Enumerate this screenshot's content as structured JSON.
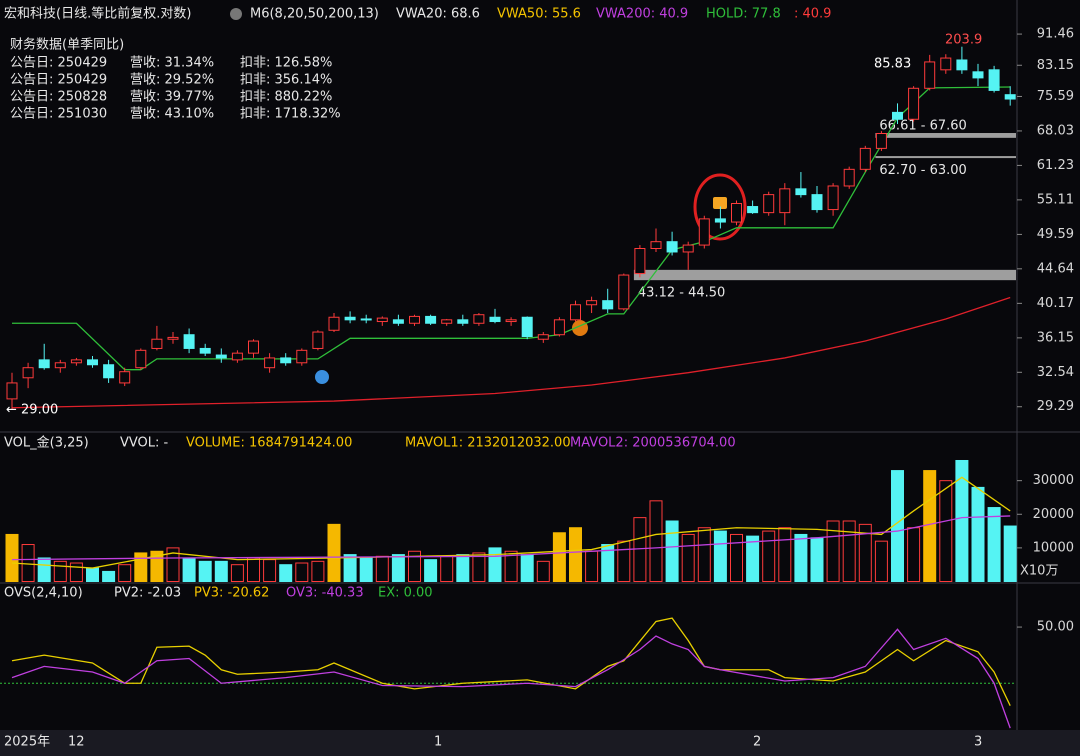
{
  "header": {
    "title": "宏和科技(日线.等比前复权.对数)",
    "indicator": "M6(8,20,50,200,13)",
    "vwa20": "VWA20: 68.6",
    "vwa50": "VWA50: 55.6",
    "vwa200": "VWA200: 40.9",
    "hold": "HOLD: 77.8",
    "extra": ": 40.9"
  },
  "finance": {
    "title": "财务数据(单季同比)",
    "rows": [
      [
        "公告日: 250429",
        "营收: 31.34%",
        "扣非: 126.58%"
      ],
      [
        "公告日: 250429",
        "营收: 29.52%",
        "扣非: 356.14%"
      ],
      [
        "公告日: 250828",
        "营收: 39.77%",
        "扣非: 880.22%"
      ],
      [
        "公告日: 251030",
        "营收: 43.10%",
        "扣非: 1718.32%"
      ]
    ]
  },
  "volume_header": {
    "name": "VOL_金(3,25)",
    "vvol": "VVOL: -",
    "volume": "VOLUME: 1684791424.00",
    "mavol1": "MAVOL1: 2132012032.00",
    "mavol2": "MAVOL2: 2000536704.00"
  },
  "ovs_header": {
    "name": "OVS(2,4,10)",
    "pv2": "PV2: -2.03",
    "pv3": "PV3: -20.62",
    "ov3": "OV3: -40.33",
    "ex": "EX: 0.00"
  },
  "footer": {
    "labels": [
      "2025年",
      "12",
      "1",
      "2",
      "3"
    ]
  },
  "chart_data": [
    {
      "type": "candlestick",
      "log_scale": true,
      "ylim": [
        27.7,
        94.9
      ],
      "yticks": [
        91.46,
        83.15,
        75.59,
        68.03,
        61.23,
        55.11,
        49.59,
        44.64,
        40.17,
        36.15,
        32.54,
        29.29
      ],
      "up_color": "#ff3b3b",
      "down_color": "#55f3f3",
      "candles": [
        [
          30.0,
          32.5,
          29.0,
          31.5
        ],
        [
          32.0,
          33.5,
          31.0,
          33.0
        ],
        [
          33.8,
          35.5,
          32.8,
          33.0
        ],
        [
          33.0,
          33.8,
          32.5,
          33.5
        ],
        [
          33.5,
          34.0,
          33.2,
          33.8
        ],
        [
          33.8,
          34.2,
          33.0,
          33.3
        ],
        [
          33.3,
          33.8,
          31.5,
          32.0
        ],
        [
          31.5,
          33.0,
          31.2,
          32.6
        ],
        [
          33.0,
          35.0,
          32.8,
          34.8
        ],
        [
          35.0,
          37.5,
          34.8,
          36.0
        ],
        [
          36.0,
          36.8,
          35.5,
          36.2
        ],
        [
          36.5,
          37.2,
          34.5,
          35.0
        ],
        [
          35.0,
          35.5,
          34.2,
          34.5
        ],
        [
          34.3,
          35.0,
          33.5,
          34.0
        ],
        [
          33.8,
          34.8,
          33.5,
          34.5
        ],
        [
          34.5,
          36.0,
          34.0,
          35.8
        ],
        [
          33.0,
          34.5,
          32.5,
          34.0
        ],
        [
          34.0,
          34.5,
          33.2,
          33.5
        ],
        [
          33.5,
          35.0,
          33.2,
          34.8
        ],
        [
          35.0,
          37.0,
          34.8,
          36.8
        ],
        [
          37.0,
          39.0,
          36.8,
          38.5
        ],
        [
          38.5,
          39.2,
          37.8,
          38.2
        ],
        [
          38.3,
          38.8,
          37.8,
          38.2
        ],
        [
          38.0,
          38.6,
          37.5,
          38.4
        ],
        [
          38.2,
          38.8,
          37.5,
          37.8
        ],
        [
          37.8,
          38.8,
          37.5,
          38.6
        ],
        [
          38.6,
          38.8,
          37.6,
          37.8
        ],
        [
          37.8,
          38.3,
          37.5,
          38.2
        ],
        [
          38.2,
          38.8,
          37.5,
          37.8
        ],
        [
          37.8,
          39.0,
          37.5,
          38.8
        ],
        [
          38.5,
          39.5,
          37.8,
          38.0
        ],
        [
          38.0,
          38.5,
          37.5,
          38.2
        ],
        [
          38.5,
          38.6,
          36.0,
          36.3
        ],
        [
          36.0,
          36.8,
          35.6,
          36.5
        ],
        [
          36.5,
          38.5,
          36.3,
          38.2
        ],
        [
          38.2,
          40.5,
          38.0,
          40.0
        ],
        [
          40.0,
          41.0,
          39.0,
          40.5
        ],
        [
          40.5,
          42.0,
          39.0,
          39.5
        ],
        [
          39.5,
          44.0,
          39.3,
          43.8
        ],
        [
          44.0,
          48.0,
          43.5,
          47.5
        ],
        [
          47.5,
          50.5,
          47.0,
          48.5
        ],
        [
          48.5,
          50.0,
          46.5,
          47.0
        ],
        [
          47.0,
          48.5,
          44.5,
          48.0
        ],
        [
          48.0,
          52.5,
          47.5,
          52.0
        ],
        [
          52.0,
          54.0,
          50.5,
          51.5
        ],
        [
          51.5,
          55.0,
          51.0,
          54.5
        ],
        [
          54.0,
          55.0,
          52.8,
          53.0
        ],
        [
          53.0,
          56.5,
          52.5,
          56.0
        ],
        [
          53.0,
          58.0,
          51.0,
          57.0
        ],
        [
          57.0,
          60.0,
          55.5,
          56.0
        ],
        [
          56.0,
          57.5,
          53.0,
          53.5
        ],
        [
          53.5,
          58.0,
          52.5,
          57.5
        ],
        [
          57.5,
          61.0,
          57.0,
          60.5
        ],
        [
          60.5,
          65.0,
          60.0,
          64.5
        ],
        [
          64.5,
          68.0,
          64.0,
          67.5
        ],
        [
          72.0,
          74.0,
          69.5,
          70.5
        ],
        [
          70.5,
          78.0,
          70.0,
          77.5
        ],
        [
          77.5,
          85.83,
          77.0,
          84.0
        ],
        [
          82.0,
          86.0,
          81.0,
          85.0
        ],
        [
          84.5,
          88.0,
          81.0,
          82.0
        ],
        [
          81.5,
          83.5,
          78.0,
          80.0
        ],
        [
          82.0,
          83.0,
          76.5,
          77.0
        ],
        [
          76.0,
          78.0,
          73.5,
          75.0
        ]
      ],
      "series": [
        {
          "name": "HOLD",
          "color": "#2fbf3a",
          "x": [
            0,
            4,
            7,
            8,
            9,
            19,
            21,
            32,
            34,
            37,
            38,
            41,
            43,
            45,
            51,
            53,
            55,
            57,
            62
          ],
          "values": [
            37.8,
            37.8,
            32.8,
            32.8,
            33.9,
            33.9,
            36.1,
            36.1,
            36.5,
            38.9,
            38.9,
            47.3,
            48.5,
            50.6,
            50.6,
            60.0,
            70.8,
            77.6,
            77.8
          ]
        },
        {
          "name": "VWA200",
          "color": "#e0202a",
          "x": [
            0,
            20,
            30,
            36,
            42,
            48,
            53,
            58,
            62
          ],
          "values": [
            29.2,
            29.8,
            30.5,
            31.3,
            32.5,
            34.0,
            35.8,
            38.3,
            40.9
          ]
        }
      ],
      "zones": [
        {
          "label": "43.12 - 44.50",
          "low": 43.12,
          "high": 44.5,
          "start": 39
        },
        {
          "label": "66.61 - 67.60",
          "low": 66.61,
          "high": 67.6,
          "start": 54
        },
        {
          "label": "62.70 - 63.00",
          "low": 62.7,
          "high": 63.0,
          "start": 54
        }
      ],
      "annotations": [
        {
          "text": "203.9",
          "color": "#ff4d4d"
        },
        {
          "text": "85.83",
          "color": "#ffffff"
        },
        {
          "text": "← 29.00",
          "color": "#ffffff"
        }
      ]
    },
    {
      "type": "volume",
      "ylim": [
        0,
        41800
      ],
      "yticks": [
        30000,
        20000,
        10000
      ],
      "unit": "X10万",
      "values": [
        14000,
        11000,
        7000,
        6000,
        5500,
        4000,
        3000,
        5000,
        8500,
        9000,
        10000,
        7000,
        6000,
        6000,
        5000,
        7000,
        6500,
        5000,
        5500,
        6000,
        17000,
        8000,
        7000,
        7500,
        8000,
        9000,
        6500,
        7500,
        8000,
        8500,
        10000,
        9000,
        8000,
        6000,
        14500,
        16000,
        9000,
        11000,
        12000,
        19000,
        24000,
        18000,
        14000,
        16000,
        15000,
        14000,
        13500,
        15000,
        16000,
        14000,
        13000,
        18000,
        18000,
        17000,
        12000,
        33000,
        16000,
        33000,
        30000,
        36000,
        28000,
        22000,
        16500
      ],
      "colors": [
        "#f5b800",
        "#ff3b3b",
        "#55f3f3",
        "#ff3b3b",
        "#ff3b3b",
        "#55f3f3",
        "#55f3f3",
        "#ff3b3b",
        "#f5b800",
        "#f5b800",
        "#ff3b3b",
        "#55f3f3",
        "#55f3f3",
        "#55f3f3",
        "#ff3b3b",
        "#ff3b3b",
        "#ff3b3b",
        "#55f3f3",
        "#ff3b3b",
        "#ff3b3b",
        "#f5b800",
        "#55f3f3",
        "#55f3f3",
        "#ff3b3b",
        "#55f3f3",
        "#ff3b3b",
        "#55f3f3",
        "#ff3b3b",
        "#55f3f3",
        "#ff3b3b",
        "#55f3f3",
        "#ff3b3b",
        "#55f3f3",
        "#ff3b3b",
        "#f5b800",
        "#f5b800",
        "#ff3b3b",
        "#55f3f3",
        "#ff3b3b",
        "#ff3b3b",
        "#ff3b3b",
        "#55f3f3",
        "#ff3b3b",
        "#ff3b3b",
        "#55f3f3",
        "#ff3b3b",
        "#55f3f3",
        "#ff3b3b",
        "#ff3b3b",
        "#55f3f3",
        "#55f3f3",
        "#ff3b3b",
        "#ff3b3b",
        "#ff3b3b",
        "#ff3b3b",
        "#55f3f3",
        "#ff3b3b",
        "#f5b800",
        "#ff3b3b",
        "#55f3f3",
        "#55f3f3",
        "#55f3f3",
        "#55f3f3"
      ],
      "series": [
        {
          "name": "MAVOL1",
          "color": "#e8d000",
          "x": [
            0,
            5,
            10,
            14,
            20,
            30,
            36,
            40,
            45,
            50,
            54,
            56,
            59,
            62
          ],
          "values": [
            5500,
            4000,
            8500,
            6500,
            7000,
            8000,
            9500,
            14000,
            16000,
            15500,
            14000,
            21000,
            31000,
            21000
          ]
        },
        {
          "name": "MAVOL2",
          "color": "#c040e0",
          "x": [
            0,
            10,
            30,
            40,
            50,
            55,
            59,
            62
          ],
          "values": [
            6500,
            7000,
            7500,
            10000,
            13000,
            15000,
            19000,
            19500
          ]
        }
      ]
    },
    {
      "type": "line",
      "ylim": [
        -55,
        83
      ],
      "yticks": [
        {
          "value": 50,
          "label": "50.00"
        }
      ],
      "reference_line": 0,
      "reference_color": "#2fbf3a",
      "series": [
        {
          "name": "PV3",
          "color": "#e8d000",
          "x": [
            0,
            2,
            5,
            7,
            8,
            9,
            11,
            12,
            13,
            14,
            17,
            19,
            20,
            23,
            25,
            28,
            32,
            35,
            37,
            38,
            40,
            41,
            42,
            43,
            44,
            47,
            48,
            50,
            51,
            53,
            55,
            56,
            58,
            60,
            61,
            62
          ],
          "values": [
            20,
            25,
            18,
            0,
            0,
            32,
            33,
            25,
            12,
            8,
            10,
            12,
            18,
            0,
            -5,
            0,
            3,
            -5,
            15,
            20,
            55,
            58,
            38,
            15,
            12,
            12,
            5,
            3,
            2,
            10,
            30,
            20,
            38,
            28,
            10,
            -20
          ]
        },
        {
          "name": "OV3",
          "color": "#c040e0",
          "x": [
            0,
            2,
            5,
            7,
            9,
            11,
            13,
            17,
            20,
            23,
            28,
            32,
            35,
            37,
            39,
            40,
            41,
            42,
            43,
            44,
            48,
            51,
            53,
            55,
            56,
            58,
            60,
            61,
            62
          ],
          "values": [
            5,
            15,
            10,
            0,
            20,
            22,
            0,
            5,
            10,
            -2,
            -3,
            0,
            -3,
            12,
            30,
            42,
            35,
            30,
            15,
            12,
            2,
            5,
            15,
            48,
            30,
            40,
            22,
            0,
            -40
          ]
        }
      ]
    }
  ]
}
